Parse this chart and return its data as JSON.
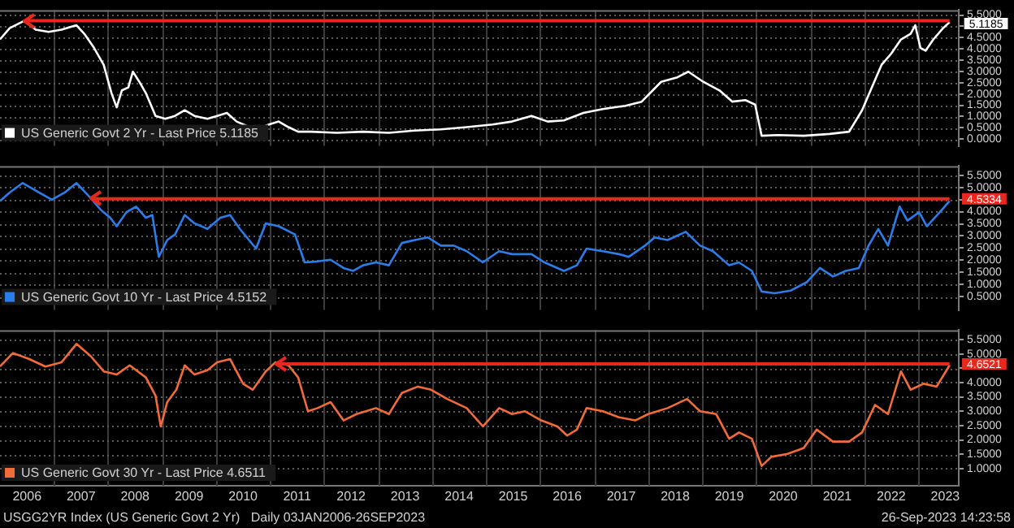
{
  "chart_data": [
    {
      "type": "line",
      "legend": "bottom left",
      "grid": true,
      "tick_labels": "y",
      "x": [
        2006,
        2006.18,
        2006.456,
        2006.66,
        2006.9,
        2007.14,
        2007.416,
        2007.56,
        2007.74,
        2007.92,
        2008.064,
        2008.16,
        2008.256,
        2008.376,
        2008.46,
        2008.58,
        2008.7,
        2008.88,
        2009.06,
        2009.24,
        2009.42,
        2009.6,
        2009.84,
        2010.02,
        2010.2,
        2010.38,
        2010.62,
        2010.8,
        2010.98,
        2011.16,
        2011.34,
        2011.52,
        2011.76,
        2012.24,
        2012.72,
        2013.2,
        2013.68,
        2014.16,
        2014.64,
        2015.12,
        2015.48,
        2015.84,
        2016.14,
        2016.44,
        2016.8,
        2017.16,
        2017.58,
        2017.88,
        2018.24,
        2018.54,
        2018.744,
        2019.02,
        2019.32,
        2019.56,
        2019.8,
        2019.98,
        2020.1,
        2020.4,
        2020.88,
        2021.36,
        2021.72,
        2021.96,
        2022.14,
        2022.32,
        2022.5,
        2022.68,
        2022.86,
        2022.944,
        2023.04,
        2023.136,
        2023.28,
        2023.46,
        2023.58
      ],
      "series": [
        {
          "name": "US Generic Govt 2 Yr - Last Price 5.1185",
          "color": "#ffffff",
          "values": [
            4.42,
            4.92,
            5.25,
            4.85,
            4.75,
            4.85,
            5.05,
            4.67,
            4.05,
            3.29,
            2.04,
            1.41,
            2.16,
            2.29,
            2.99,
            2.54,
            2.04,
            1.03,
            0.9,
            1.03,
            1.28,
            1.03,
            0.9,
            1.03,
            1.16,
            0.78,
            0.53,
            0.48,
            0.65,
            0.78,
            0.53,
            0.33,
            0.33,
            0.28,
            0.33,
            0.28,
            0.38,
            0.43,
            0.53,
            0.65,
            0.78,
            1.03,
            0.78,
            0.83,
            1.16,
            1.33,
            1.48,
            1.66,
            2.54,
            2.74,
            2.99,
            2.54,
            2.16,
            1.66,
            1.73,
            1.53,
            0.15,
            0.18,
            0.15,
            0.23,
            0.33,
            1.28,
            2.29,
            3.29,
            3.79,
            4.42,
            4.67,
            5.05,
            4.05,
            3.92,
            4.42,
            4.92,
            5.18
          ]
        }
      ],
      "ref_lines": [
        {
          "axis": "y",
          "value": 5.25,
          "color": "#e8281e"
        }
      ],
      "annotations": [
        {
          "text": "5.1185",
          "x": 2023.58,
          "y": 5.1185
        }
      ],
      "xlim": [
        2006,
        2023.75
      ],
      "xticks": [
        {
          "value": 2007,
          "label": null
        },
        {
          "value": 2008,
          "label": null
        },
        {
          "value": 2009,
          "label": null
        },
        {
          "value": 2010,
          "label": null
        },
        {
          "value": 2011,
          "label": null
        },
        {
          "value": 2012,
          "label": null
        },
        {
          "value": 2013,
          "label": null
        },
        {
          "value": 2014,
          "label": null
        },
        {
          "value": 2015,
          "label": null
        },
        {
          "value": 2016,
          "label": null
        },
        {
          "value": 2017,
          "label": null
        },
        {
          "value": 2018,
          "label": null
        },
        {
          "value": 2019,
          "label": null
        },
        {
          "value": 2020,
          "label": null
        },
        {
          "value": 2021,
          "label": null
        },
        {
          "value": 2022,
          "label": null
        },
        {
          "value": 2023,
          "label": null
        }
      ],
      "ylim": [
        -0.3,
        5.72
      ],
      "yticks": [
        {
          "value": 0,
          "label": "0.0000"
        },
        {
          "value": 0.5,
          "label": "0.5000"
        },
        {
          "value": 1,
          "label": "1.0000"
        },
        {
          "value": 1.5,
          "label": "1.5000"
        },
        {
          "value": 2,
          "label": "2.0000"
        },
        {
          "value": 2.5,
          "label": "2.5000"
        },
        {
          "value": 3,
          "label": "3.0000"
        },
        {
          "value": 3.5,
          "label": "3.5000"
        },
        {
          "value": 4,
          "label": "4.0000"
        },
        {
          "value": 4.5,
          "label": "4.5000"
        },
        {
          "value": 5,
          "label": null
        },
        {
          "value": 5.5,
          "label": "5.5000"
        }
      ]
    },
    {
      "type": "line",
      "legend": "bottom left",
      "grid": true,
      "tick_labels": "y",
      "x": [
        2006,
        2006.18,
        2006.42,
        2006.72,
        2006.96,
        2007.2,
        2007.416,
        2007.68,
        2007.86,
        2008.04,
        2008.16,
        2008.34,
        2008.52,
        2008.7,
        2008.82,
        2008.94,
        2009.096,
        2009.24,
        2009.42,
        2009.6,
        2009.84,
        2010.08,
        2010.26,
        2010.44,
        2010.74,
        2010.92,
        2011.16,
        2011.46,
        2011.64,
        2011.88,
        2012.12,
        2012.36,
        2012.54,
        2012.72,
        2012.96,
        2013.2,
        2013.44,
        2013.68,
        2013.92,
        2014.16,
        2014.4,
        2014.64,
        2014.94,
        2015.24,
        2015.48,
        2015.84,
        2016.08,
        2016.44,
        2016.68,
        2016.86,
        2017.16,
        2017.46,
        2017.64,
        2017.94,
        2018.12,
        2018.36,
        2018.696,
        2018.96,
        2019.2,
        2019.5,
        2019.68,
        2019.92,
        2020.1,
        2020.34,
        2020.64,
        2020.94,
        2021.18,
        2021.42,
        2021.66,
        2021.9,
        2022.08,
        2022.26,
        2022.44,
        2022.656,
        2022.8,
        2023.016,
        2023.16,
        2023.4,
        2023.58
      ],
      "series": [
        {
          "name": "US Generic Govt 10 Yr - Last Price 4.5152",
          "color": "#2b7de9",
          "values": [
            4.44,
            4.79,
            5.18,
            4.79,
            4.49,
            4.79,
            5.18,
            4.56,
            4.09,
            3.75,
            3.4,
            3.98,
            4.21,
            3.75,
            3.86,
            2.14,
            2.83,
            3.06,
            3.86,
            3.52,
            3.29,
            3.75,
            3.86,
            3.29,
            2.48,
            3.52,
            3.4,
            3.06,
            1.91,
            1.95,
            2.02,
            1.68,
            1.56,
            1.79,
            1.91,
            1.79,
            2.71,
            2.83,
            2.94,
            2.6,
            2.6,
            2.37,
            1.91,
            2.37,
            2.25,
            2.25,
            1.91,
            1.56,
            1.79,
            2.48,
            2.37,
            2.25,
            2.14,
            2.6,
            2.94,
            2.83,
            3.17,
            2.6,
            2.37,
            1.79,
            1.91,
            1.56,
            0.71,
            0.64,
            0.75,
            1.1,
            1.68,
            1.33,
            1.56,
            1.68,
            2.6,
            3.29,
            2.6,
            4.21,
            3.63,
            3.98,
            3.4,
            3.98,
            4.44
          ]
        }
      ],
      "ref_lines": [
        {
          "axis": "y",
          "value": 4.5334,
          "label": "4.5334",
          "color": "#e8281e"
        }
      ],
      "xlim": [
        2006,
        2023.75
      ],
      "xticks": [
        {
          "value": 2007,
          "label": null
        },
        {
          "value": 2008,
          "label": null
        },
        {
          "value": 2009,
          "label": null
        },
        {
          "value": 2010,
          "label": null
        },
        {
          "value": 2011,
          "label": null
        },
        {
          "value": 2012,
          "label": null
        },
        {
          "value": 2013,
          "label": null
        },
        {
          "value": 2014,
          "label": null
        },
        {
          "value": 2015,
          "label": null
        },
        {
          "value": 2016,
          "label": null
        },
        {
          "value": 2017,
          "label": null
        },
        {
          "value": 2018,
          "label": null
        },
        {
          "value": 2019,
          "label": null
        },
        {
          "value": 2020,
          "label": null
        },
        {
          "value": 2021,
          "label": null
        },
        {
          "value": 2022,
          "label": null
        },
        {
          "value": 2023,
          "label": null
        }
      ],
      "ylim": [
        -0.05,
        5.88
      ],
      "yticks": [
        {
          "value": 0.5,
          "label": "0.5000"
        },
        {
          "value": 1,
          "label": "1.0000"
        },
        {
          "value": 1.5,
          "label": "1.5000"
        },
        {
          "value": 2,
          "label": "2.0000"
        },
        {
          "value": 2.5,
          "label": "2.5000"
        },
        {
          "value": 3,
          "label": "3.0000"
        },
        {
          "value": 3.5,
          "label": "3.5000"
        },
        {
          "value": 4,
          "label": "4.0000"
        },
        {
          "value": 4.5,
          "label": null
        },
        {
          "value": 5,
          "label": "5.0000"
        },
        {
          "value": 5.5,
          "label": "5.5000"
        }
      ]
    },
    {
      "type": "line",
      "legend": "bottom left",
      "grid": true,
      "x": [
        2006,
        2006.24,
        2006.54,
        2006.84,
        2007.14,
        2007.416,
        2007.68,
        2007.92,
        2008.16,
        2008.4,
        2008.7,
        2008.88,
        2008.976,
        2009.096,
        2009.264,
        2009.42,
        2009.6,
        2009.84,
        2010.02,
        2010.26,
        2010.5,
        2010.68,
        2010.92,
        2011.1,
        2011.34,
        2011.52,
        2011.7,
        2011.88,
        2012.12,
        2012.36,
        2012.6,
        2012.96,
        2013.2,
        2013.44,
        2013.74,
        2013.98,
        2014.28,
        2014.64,
        2014.94,
        2015.24,
        2015.48,
        2015.72,
        2016.02,
        2016.32,
        2016.5,
        2016.68,
        2016.86,
        2017.16,
        2017.46,
        2017.76,
        2018,
        2018.36,
        2018.72,
        2018.96,
        2019.26,
        2019.5,
        2019.68,
        2019.92,
        2020.1,
        2020.28,
        2020.58,
        2020.88,
        2021.12,
        2021.42,
        2021.72,
        2021.96,
        2022.2,
        2022.44,
        2022.68,
        2022.86,
        2023.1,
        2023.34,
        2023.58
      ],
      "series": [
        {
          "name": "US Generic Govt 30 Yr - Last Price 4.6511",
          "color": "#f26b38",
          "values": [
            4.56,
            5.03,
            4.82,
            4.56,
            4.71,
            5.35,
            4.92,
            4.39,
            4.28,
            4.6,
            4.18,
            3.54,
            2.47,
            3.32,
            3.75,
            4.6,
            4.28,
            4.43,
            4.71,
            4.82,
            3.96,
            3.75,
            4.39,
            4.71,
            4.6,
            4.18,
            3.0,
            3.11,
            3.32,
            2.68,
            2.9,
            3.11,
            2.9,
            3.64,
            3.86,
            3.75,
            3.43,
            3.11,
            2.47,
            3.11,
            2.9,
            3.0,
            2.68,
            2.47,
            2.15,
            2.36,
            3.11,
            3.0,
            2.79,
            2.68,
            2.9,
            3.11,
            3.43,
            3.0,
            2.9,
            2.04,
            2.26,
            2.04,
            1.09,
            1.41,
            1.51,
            1.72,
            2.36,
            1.94,
            1.94,
            2.26,
            3.22,
            2.9,
            4.39,
            3.75,
            3.96,
            3.86,
            4.6
          ]
        }
      ],
      "ref_lines": [
        {
          "axis": "y",
          "value": 4.6521,
          "label": "4.6521",
          "color": "#e8281e"
        }
      ],
      "annotations": [
        "USGG2YR Index (US Generic Govt 2 Yr)   Daily 03JAN2006-26SEP2023",
        "26-Sep-2023 14:23:58"
      ],
      "xlim": [
        2006,
        2023.75
      ],
      "xticks": [
        {
          "value": 2006.5,
          "label": "2006"
        },
        {
          "value": 2007,
          "label": null
        },
        {
          "value": 2007.5,
          "label": "2007"
        },
        {
          "value": 2008,
          "label": null
        },
        {
          "value": 2008.5,
          "label": "2008"
        },
        {
          "value": 2009,
          "label": null
        },
        {
          "value": 2009.5,
          "label": "2009"
        },
        {
          "value": 2010,
          "label": null
        },
        {
          "value": 2010.5,
          "label": "2010"
        },
        {
          "value": 2011,
          "label": null
        },
        {
          "value": 2011.5,
          "label": "2011"
        },
        {
          "value": 2012,
          "label": null
        },
        {
          "value": 2012.5,
          "label": "2012"
        },
        {
          "value": 2013,
          "label": null
        },
        {
          "value": 2013.5,
          "label": "2013"
        },
        {
          "value": 2014,
          "label": null
        },
        {
          "value": 2014.5,
          "label": "2014"
        },
        {
          "value": 2015,
          "label": null
        },
        {
          "value": 2015.5,
          "label": "2015"
        },
        {
          "value": 2016,
          "label": null
        },
        {
          "value": 2016.5,
          "label": "2016"
        },
        {
          "value": 2017,
          "label": null
        },
        {
          "value": 2017.5,
          "label": "2017"
        },
        {
          "value": 2018,
          "label": null
        },
        {
          "value": 2018.5,
          "label": "2018"
        },
        {
          "value": 2019,
          "label": null
        },
        {
          "value": 2019.5,
          "label": "2019"
        },
        {
          "value": 2020,
          "label": null
        },
        {
          "value": 2020.5,
          "label": "2020"
        },
        {
          "value": 2021,
          "label": null
        },
        {
          "value": 2021.5,
          "label": "2021"
        },
        {
          "value": 2022,
          "label": null
        },
        {
          "value": 2022.5,
          "label": "2022"
        },
        {
          "value": 2023,
          "label": null
        },
        {
          "value": 2023.5,
          "label": "2023"
        }
      ],
      "ylim": [
        0.4,
        5.83
      ],
      "yticks": [
        {
          "value": 1,
          "label": "1.0000"
        },
        {
          "value": 1.5,
          "label": "1.5000"
        },
        {
          "value": 2,
          "label": "2.0000"
        },
        {
          "value": 2.5,
          "label": "2.5000"
        },
        {
          "value": 3,
          "label": "3.0000"
        },
        {
          "value": 3.5,
          "label": "3.5000"
        },
        {
          "value": 4,
          "label": "4.0000"
        },
        {
          "value": 4.5,
          "label": null
        },
        {
          "value": 5,
          "label": "5.0000"
        },
        {
          "value": 5.5,
          "label": "5.5000"
        }
      ]
    }
  ]
}
